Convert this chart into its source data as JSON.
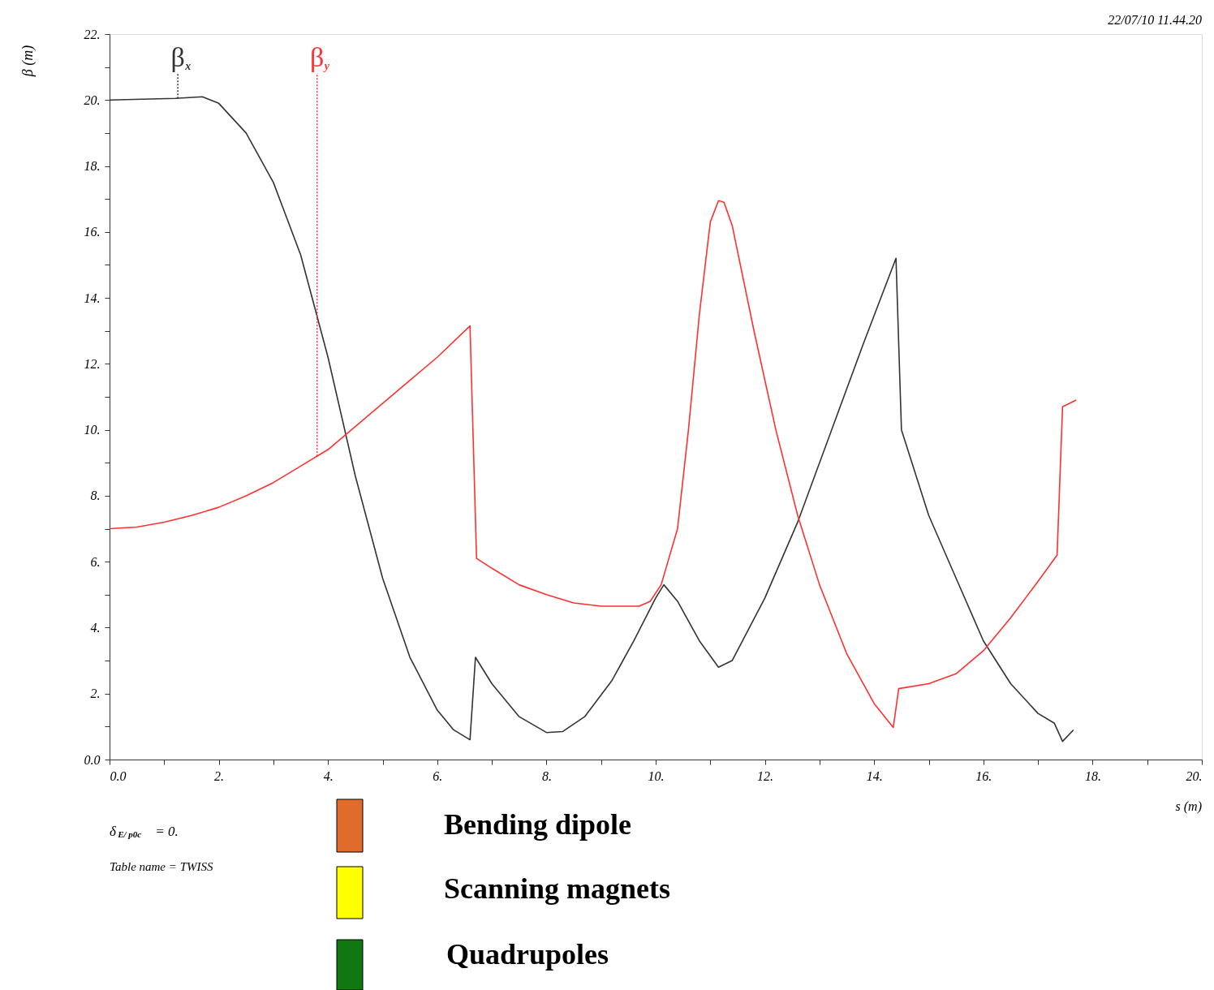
{
  "chart_data": {
    "type": "line",
    "xlabel": "s (m)",
    "ylabel": "β (m)",
    "xlim": [
      0,
      20
    ],
    "ylim": [
      0,
      22
    ],
    "xticks": [
      {
        "value": 0,
        "label": "0.0"
      },
      {
        "value": 1,
        "label": null
      },
      {
        "value": 2,
        "label": "2."
      },
      {
        "value": 3,
        "label": null
      },
      {
        "value": 4,
        "label": "4."
      },
      {
        "value": 5,
        "label": null
      },
      {
        "value": 6,
        "label": "6."
      },
      {
        "value": 7,
        "label": null
      },
      {
        "value": 8,
        "label": "8."
      },
      {
        "value": 9,
        "label": null
      },
      {
        "value": 10,
        "label": "10."
      },
      {
        "value": 11,
        "label": null
      },
      {
        "value": 12,
        "label": "12."
      },
      {
        "value": 13,
        "label": null
      },
      {
        "value": 14,
        "label": "14."
      },
      {
        "value": 15,
        "label": null
      },
      {
        "value": 16,
        "label": "16."
      },
      {
        "value": 17,
        "label": null
      },
      {
        "value": 18,
        "label": "18."
      },
      {
        "value": 19,
        "label": null
      },
      {
        "value": 20,
        "label": "20."
      }
    ],
    "yticks": [
      {
        "value": 0,
        "label": "0.0"
      },
      {
        "value": 1,
        "label": null
      },
      {
        "value": 2,
        "label": "2."
      },
      {
        "value": 3,
        "label": null
      },
      {
        "value": 4,
        "label": "4."
      },
      {
        "value": 5,
        "label": null
      },
      {
        "value": 6,
        "label": "6."
      },
      {
        "value": 7,
        "label": null
      },
      {
        "value": 8,
        "label": "8."
      },
      {
        "value": 9,
        "label": null
      },
      {
        "value": 10,
        "label": "10."
      },
      {
        "value": 11,
        "label": null
      },
      {
        "value": 12,
        "label": "12."
      },
      {
        "value": 13,
        "label": null
      },
      {
        "value": 14,
        "label": "14."
      },
      {
        "value": 15,
        "label": null
      },
      {
        "value": 16,
        "label": "16."
      },
      {
        "value": 17,
        "label": null
      },
      {
        "value": 18,
        "label": "18."
      },
      {
        "value": 19,
        "label": null
      },
      {
        "value": 20,
        "label": "20."
      },
      {
        "value": 21,
        "label": null
      },
      {
        "value": 22,
        "label": "22."
      }
    ],
    "grid": false,
    "legend": false,
    "marker": "none",
    "line_style": "solid",
    "series": [
      {
        "color": "#333333",
        "x": [
          0,
          1.2,
          1.7,
          2.0,
          2.5,
          3.0,
          3.5,
          4.0,
          4.5,
          5.0,
          5.5,
          6.0,
          6.3,
          6.6,
          6.7,
          7.0,
          7.5,
          8.0,
          8.3,
          8.7,
          9.2,
          9.6,
          10.0,
          10.15,
          10.4,
          10.8,
          11.15,
          11.4,
          12.0,
          12.6,
          13.2,
          13.8,
          14.4,
          14.5,
          15.0,
          15.5,
          16.0,
          16.5,
          17.0,
          17.3,
          17.45,
          17.65
        ],
        "values": [
          20,
          20.05,
          20.1,
          19.9,
          19.0,
          17.5,
          15.3,
          12.2,
          8.6,
          5.5,
          3.1,
          1.5,
          0.9,
          0.6,
          3.1,
          2.3,
          1.3,
          0.82,
          0.85,
          1.3,
          2.4,
          3.6,
          4.9,
          5.3,
          4.8,
          3.6,
          2.8,
          3.0,
          4.9,
          7.2,
          9.9,
          12.6,
          15.2,
          10.0,
          7.4,
          5.5,
          3.6,
          2.3,
          1.4,
          1.1,
          0.55,
          0.9
        ]
      },
      {
        "color": "#ff3030",
        "x": [
          0,
          0.5,
          1.0,
          1.5,
          2.0,
          2.5,
          3.0,
          3.5,
          4.0,
          4.5,
          5.0,
          5.5,
          6.0,
          6.6,
          6.72,
          7.0,
          7.5,
          8.0,
          8.5,
          9.0,
          9.7,
          9.9,
          10.1,
          10.4,
          10.6,
          10.8,
          11.0,
          11.15,
          11.25,
          11.4,
          11.8,
          12.2,
          12.6,
          13.0,
          13.5,
          14.0,
          14.35,
          14.45,
          15.0,
          15.5,
          16.0,
          16.5,
          17.0,
          17.35,
          17.45,
          17.7
        ],
        "values": [
          7,
          7.05,
          7.2,
          7.4,
          7.65,
          8.0,
          8.4,
          8.9,
          9.4,
          10.1,
          10.8,
          11.5,
          12.2,
          13.15,
          6.1,
          5.8,
          5.3,
          5.0,
          4.75,
          4.65,
          4.65,
          4.8,
          5.3,
          7.0,
          10.0,
          13.5,
          16.3,
          16.95,
          16.9,
          16.2,
          13.0,
          10.0,
          7.4,
          5.3,
          3.2,
          1.7,
          0.97,
          2.15,
          2.3,
          2.6,
          3.3,
          4.3,
          5.4,
          6.2,
          10.7,
          10.9
        ]
      }
    ],
    "annotations": [
      {
        "text": "β$_{x}$",
        "x": 1.25,
        "y": 20.05
      },
      {
        "text": "β$_{y}$",
        "x": 3.8,
        "y": 9.2
      },
      "22/07/10  11.44.20",
      "δ$_{E/ p0c}$ = 0.",
      "Table name = TWISS",
      "Bending dipole",
      "Scanning magnets",
      "Quadrupoles"
    ]
  }
}
